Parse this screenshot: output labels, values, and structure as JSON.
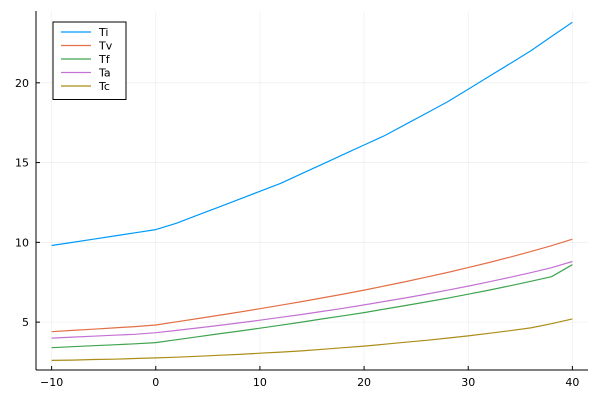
{
  "chart_data": {
    "type": "line",
    "title": "",
    "xlabel": "",
    "ylabel": "",
    "xlim": [
      -11.5,
      41.5
    ],
    "ylim": [
      2.0,
      24.5
    ],
    "xticks": [
      -10,
      0,
      10,
      20,
      30,
      40
    ],
    "yticks": [
      5,
      10,
      15,
      20
    ],
    "grid": true,
    "legend_position": "top-left",
    "x": [
      -10,
      -8,
      -6,
      -4,
      -2,
      0,
      2,
      4,
      6,
      8,
      10,
      12,
      14,
      16,
      18,
      20,
      22,
      24,
      26,
      28,
      30,
      32,
      34,
      36,
      38,
      40
    ],
    "series": [
      {
        "name": "Ti",
        "color": "#009AFA",
        "values": [
          9.8,
          10.0,
          10.2,
          10.4,
          10.6,
          10.8,
          11.2,
          11.7,
          12.2,
          12.7,
          13.2,
          13.7,
          14.3,
          14.9,
          15.5,
          16.1,
          16.7,
          17.4,
          18.1,
          18.8,
          19.6,
          20.4,
          21.2,
          22.0,
          22.9,
          23.8
        ]
      },
      {
        "name": "Tv",
        "color": "#E36F47",
        "values": [
          4.4,
          4.48,
          4.56,
          4.64,
          4.72,
          4.82,
          5.02,
          5.22,
          5.42,
          5.63,
          5.84,
          6.06,
          6.29,
          6.52,
          6.76,
          7.01,
          7.27,
          7.54,
          7.82,
          8.11,
          8.42,
          8.74,
          9.07,
          9.42,
          9.79,
          10.2
        ]
      },
      {
        "name": "Tf",
        "color": "#3EA44E",
        "values": [
          3.4,
          3.46,
          3.52,
          3.58,
          3.64,
          3.72,
          3.9,
          4.08,
          4.26,
          4.44,
          4.62,
          4.81,
          5.0,
          5.2,
          5.4,
          5.6,
          5.82,
          6.04,
          6.27,
          6.5,
          6.75,
          7.01,
          7.28,
          7.56,
          7.85,
          8.6
        ]
      },
      {
        "name": "Ta",
        "color": "#C371D2",
        "values": [
          4.0,
          4.06,
          4.12,
          4.18,
          4.24,
          4.34,
          4.48,
          4.63,
          4.79,
          4.95,
          5.12,
          5.3,
          5.48,
          5.67,
          5.87,
          6.08,
          6.3,
          6.52,
          6.76,
          7.0,
          7.26,
          7.53,
          7.81,
          8.1,
          8.41,
          8.8
        ]
      },
      {
        "name": "Tc",
        "color": "#AC8D18",
        "values": [
          2.6,
          2.62,
          2.66,
          2.68,
          2.72,
          2.76,
          2.8,
          2.86,
          2.92,
          2.98,
          3.05,
          3.12,
          3.2,
          3.3,
          3.4,
          3.5,
          3.62,
          3.74,
          3.86,
          4.0,
          4.14,
          4.3,
          4.46,
          4.64,
          4.9,
          5.2
        ]
      }
    ]
  }
}
